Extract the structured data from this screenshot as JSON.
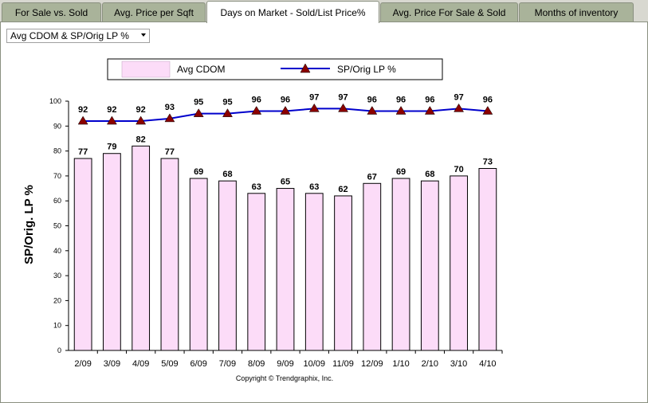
{
  "tabs": [
    {
      "label": "For Sale vs. Sold",
      "active": false
    },
    {
      "label": "Avg. Price per Sqft",
      "active": false
    },
    {
      "label": "Days on Market - Sold/List Price%",
      "active": true
    },
    {
      "label": "Avg. Price For Sale & Sold",
      "active": false
    },
    {
      "label": "Months of inventory",
      "active": false
    }
  ],
  "dropdown": {
    "selected": "Avg CDOM & SP/Orig LP %"
  },
  "copyright": "Copyright © Trendgraphix, Inc.",
  "colors": {
    "bar_fill": "#fcdcf8",
    "line": "#0000cc",
    "marker": "#8b0000"
  },
  "chart_data": {
    "type": "bar+line",
    "categories": [
      "2/09",
      "3/09",
      "4/09",
      "5/09",
      "6/09",
      "7/09",
      "8/09",
      "9/09",
      "10/09",
      "11/09",
      "12/09",
      "1/10",
      "2/10",
      "3/10",
      "4/10"
    ],
    "series": [
      {
        "name": "Avg CDOM",
        "type": "bar",
        "values": [
          77,
          79,
          82,
          77,
          69,
          68,
          63,
          65,
          63,
          62,
          67,
          69,
          68,
          70,
          73
        ]
      },
      {
        "name": "SP/Orig LP %",
        "type": "line",
        "values": [
          92,
          92,
          92,
          93,
          95,
          95,
          96,
          96,
          97,
          97,
          96,
          96,
          96,
          97,
          96
        ]
      }
    ],
    "ylabel": "SP/Orig. LP %",
    "ylim": [
      0,
      100
    ],
    "yticks": [
      0,
      10,
      20,
      30,
      40,
      50,
      60,
      70,
      80,
      90,
      100
    ],
    "legend": "top"
  }
}
